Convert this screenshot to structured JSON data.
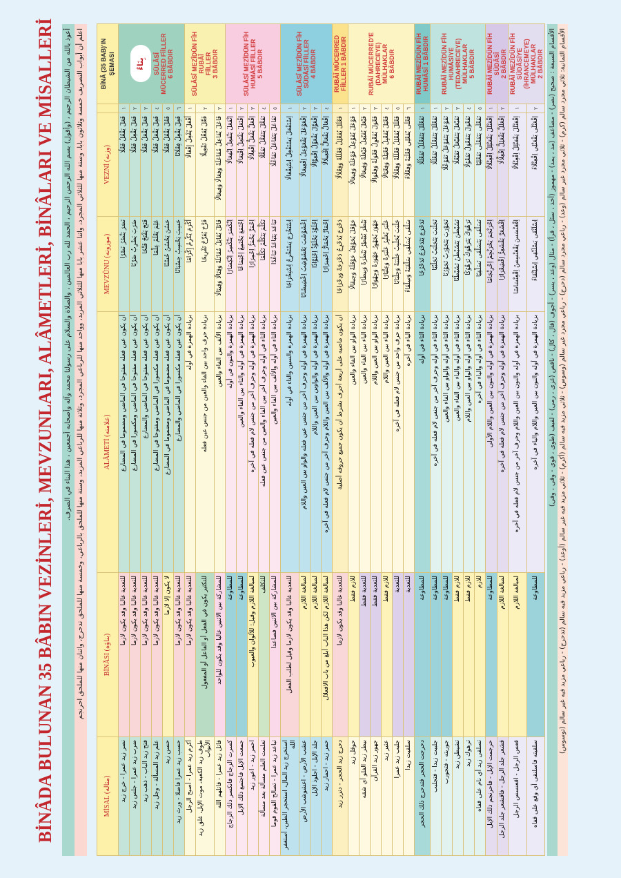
{
  "title": "BİNÂDA BULUNAN 35 BÂBIN VEZİNLERİ, MEVZUNLARI, ALÂMETLERİ, BİNÂLARI VE MİSALLERİ",
  "intro": [
    "أعوذ بالله من الشيطان الرجيم ، (وأقول) بسم الله الرحمن الرحيم ، الحمد لله رب العالمين ، والصلاة والسلام على رسولنا محمد وآله وأصحابه أجمعين ، هذا البناء في الصرف.",
    "اعلم أن أبواب التصريف خمسة وثلاثون بابا، وستة منها للثلاثي المجرد، واثنا عشر بابا منها للثلاثي المزيد، وواحد منها للرباعي المجرد، وثلاثة منها للرباعي المزيد، وستة منها للملحق بالرباعي، وخمسة منها للملحق تدحرج، واثنان منها للملحق احرنجم"
  ],
  "headers": {
    "misal": "MİSAL (مثاله)",
    "binasi": "BİNÂSI (بناؤه)",
    "alameti": "ALÂMETİ (علامته)",
    "mevzunu": "MEVZÛNU (موزونه)",
    "vezni": "VEZNİ (وزنه)",
    "schema": "BİNÂ (35 BAB)'IN ŞEMASI"
  },
  "cloud_label": "بِنَاءٌ",
  "groups": [
    {
      "label": "SÜLÂSÎ\nMÜCERRED FİİLLER\n6 BÂBDIR",
      "color": "#9fd3c0",
      "tint": "#c4e4da",
      "rows": [
        {
          "num": "١",
          "vezni": "فَعَلَ يَفْعُلُ فَعْلًا",
          "mevzunu": "نَصَرَ يَنْصُرُ نَصْرًا",
          "alameti": "أن يكون عين فعله مفتوحا في الماضي ومضموما في المضارع",
          "binasi": "للتعدية غالبا وقد يكون لازما",
          "bc": "#f9d6d8",
          "misal": "نصر زيد عمرا - خرج زيد"
        },
        {
          "num": "٢",
          "vezni": "فَعَلَ يَفْعِلُ فَعْلًا",
          "mevzunu": "ضَرَبَ يَضْرِبُ ضَرْبًا",
          "alameti": "أن يكون عين فعله مفتوحا في الماضي ومكسورا في المضارع",
          "binasi": "للتعدية غالبا وقد يكون لازما",
          "bc": "#f9d6d8",
          "misal": "ضرب زيد عمرا - جلس زيد"
        },
        {
          "num": "٣",
          "vezni": "فَعَلَ يَفْعَلُ فَعْلًا",
          "mevzunu": "فَتَحَ يَفْتَحُ فَتْحًا",
          "alameti": "أن يكون عين فعله مفتوحا في الماضي والمضارع",
          "binasi": "للتعدية غالبا وقد يكون لازما",
          "bc": "#f9d6d8",
          "misal": "فتح زيد الباب - ذهب زيد"
        },
        {
          "num": "٤",
          "vezni": "فَعِلَ يَفْعَلُ فَعْلًا",
          "mevzunu": "عَلِمَ يَعْلَمُ عِلْمًا",
          "alameti": "أن يكون عين فعله مكسورا في الماضي ومفتوحا في المضارع",
          "binasi": "للتعدية غالبا وقد يكون لازما",
          "bc": "#f9d6d8",
          "misal": "علم زيد المسألة - وجل زيد"
        },
        {
          "num": "٥",
          "vezni": "فَعُلَ يَفْعُلُ فَعْلًا",
          "mevzunu": "حَسُنَ يَحْسُنُ حُسْنًا",
          "alameti": "أن يكون عين فعله مضموما في الماضي ومضموما في المضارع",
          "binasi": "لا يكون إلا لازما",
          "bc": "#fdf3b8",
          "misal": "حسن زيد"
        },
        {
          "num": "٦",
          "vezni": "فَعِلَ يَفْعِلُ فِعْلَانًا",
          "mevzunu": "حَسِبَ يَحْسِبُ حِسْبَانًا",
          "alameti": "أن يكون عين فعله مكسورا في الماضي والمضارع",
          "binasi": "للتعدية غالبا وقد يكون لازما",
          "bc": "#f9d6d8",
          "misal": "حسب زيد عمرا فاضلا - ورث زيد"
        }
      ]
    },
    {
      "label": "SÜLÂSÎ MEZÎDÜN FÎH RUBÂÎ\nFİİLLER\n3 BÂBDIR",
      "color": "#f8f1b0",
      "tint": "#fdf9dc",
      "rows": [
        {
          "num": "١",
          "vezni": "أَفْعَلَ يُفْعِلُ إِفْعَالًا",
          "mevzunu": "أَكْرَمَ يُكْرِمُ إِكْرَامًا",
          "alameti": "بزيادة الهمزة في أوله",
          "binasi": "للتعدية غالبا وقد يكون لازما",
          "bc": "#f9d6d8",
          "misal": "أكرم زيد عمرا - أصبح الرجل"
        },
        {
          "num": "٢",
          "vezni": "فَعَّلَ يُفَعِّلُ تَفْعِيلًا",
          "mevzunu": "فَرَّحَ يُفَرِّحُ تَفْرِيحًا",
          "alameti": "بزيادة حرف واحد بين الفاء والعين من جنس عين فعله",
          "binasi": "للتكثير يكون في الفعل أو الفاعل أو المفعول",
          "bc": "#b9dcc4",
          "misal": "طوف زيد الكعبة، موت الإبل، غلق زيد الأبواب"
        },
        {
          "num": "٣",
          "vezni": "فَاعَلَ يُفَاعِلُ مُفَاعَلَةً وَفِعَالًا وَفِيعَالًا",
          "mevzunu": "قَاتَلَ يُقَاتِلُ مُقَاتَلَةً وَقِتَالًا وَقِيتَالًا",
          "alameti": "بزيادة الألف بين الفاء والعين",
          "binasi": "للمشاركة بين الاثنين غالبا وقد يكون للواحد",
          "bc": "#f9d9ea",
          "misal": "قاتل زيد عمرا - قاتلهم الله"
        }
      ]
    },
    {
      "label": "SÜLÂSÎ MEZÎDÜN FÎH\nHUMÂSÎ FİİLLER\n5 BÂBDIR",
      "color": "#f9cde0",
      "tint": "#fce6ef",
      "rows": [
        {
          "num": "١",
          "vezni": "اِنْفَعَلَ يَنْفَعِلُ اِنْفِعَالًا",
          "mevzunu": "اِنْكَسَرَ يَنْكَسِرُ اِنْكِسَارًا",
          "alameti": "بزيادة الهمزة والنون في أوله",
          "binasi": "للمطاوعة",
          "bc": "#9cd3da",
          "misal": "كسرت الزجاج فانكسر ذلك الزجاج"
        },
        {
          "num": "٢",
          "vezni": "اِفْتَعَلَ يَفْتَعِلُ اِفْتِعَالًا",
          "mevzunu": "اِجْتَمَعَ يَجْتَمِعُ اِجْتِمَاعًا",
          "alameti": "بزيادة الهمزة في أوله والتاء بين الفاء والعين",
          "binasi": "للمطاوعة",
          "bc": "#9cd3da",
          "misal": "جمعت الإبل فاجتمع ذلك الإبل"
        },
        {
          "num": "٣",
          "vezni": "اِفْعَلَّ يَفْعَلُّ اِفْعِلَالًا",
          "mevzunu": "اِحْمَرَّ يَحْمَرُّ اِحْمِرَارًا",
          "alameti": "بزيادة الهمزة في أوله وحرف آخر من جنس لام فعله في آخره",
          "binasi": "لمبالغة اللازم وقيل: للألوان والعيوب",
          "bc": "#fdf3b8",
          "misal": "احمر زيد - اعور زيد"
        },
        {
          "num": "٤",
          "vezni": "تَفَعَّلَ يَتَفَعَّلُ تَفَعُّلًا",
          "mevzunu": "تَكَلَّمَ يَتَكَلَّمُ تَكَلُّمًا",
          "alameti": "بزيادة التاء في أوله وحرف آخر بين الفاء والعين من جنس عين فعله",
          "binasi": "للتكلف",
          "bc": "#cfe6c6",
          "misal": "تعلمت العلم مسألة بعد مسألة"
        },
        {
          "num": "٥",
          "vezni": "تَفَاعَلَ يَتَفَاعَلُ تَفَاعُلًا",
          "mevzunu": "تَبَاعَدَ يَتَبَاعَدُ تَبَاعُدًا",
          "alameti": "بزيادة التاء في أوله والألف بين الفاء والعين",
          "binasi": "للمشاركة بين الاثنين فصاعدا",
          "bc": "#f9d9ea",
          "misal": "تباعد زيد عمرا - تصالح القوم قوما"
        }
      ]
    },
    {
      "label": "SÜLÂSÎ MEZÎDÜN FÎH\nSÜDÂSÎ FİİLLER\n4 BÂBDIR",
      "color": "#8ecfe0",
      "tint": "#bfe3ee",
      "rows": [
        {
          "num": "١",
          "vezni": "اِسْتَفْعَلَ يَسْتَفْعِلُ اِسْتِفْعَالًا",
          "mevzunu": "اِسْتَخْرَجَ يَسْتَخْرِجُ اِسْتِخْرَاجًا",
          "alameti": "بزيادة الهمزة والسين والتاء في أوله",
          "binasi": "للتعدية غالبا وقد يكون لازما وقيل لطلب الفعل",
          "bc": "#f9d6d8",
          "misal": "استخرج زيد المال، استحجر الطين، أستغفر الله"
        },
        {
          "num": "٢",
          "vezni": "اِفْعَوْعَلَ يَفْعَوْعِلُ اِفْعِيعَالًا",
          "mevzunu": "اِعْشَوْشَبَ يَعْشَوْشِبُ اِعْشِيشَابًا",
          "alameti": "بزيادة الهمزة في أوله وحرف آخر من جنس عين فعله والواو بين العين واللام",
          "binasi": "لمبالغة اللازم",
          "bc": "#fdf3b8",
          "misal": "عشب الأرض - اعشوشب الأرض"
        },
        {
          "num": "٣",
          "vezni": "اِفْعَوَّلَ يَفْعَوِّلُ اِفْعِوَّالًا",
          "mevzunu": "اِجْلَوَّذَ يَجْلَوِّذُ اِجْلِوَّاذًا",
          "alameti": "بزيادة الهمزة في أوله والواوين بين العين واللام",
          "binasi": "لمبالغة اللازم",
          "bc": "#fdf3b8",
          "misal": "جلذ الإبل - اجلوذ الإبل"
        },
        {
          "num": "٤",
          "vezni": "اِفْعَالَّ يَفْعَالُّ اِفْعِيلَالًا",
          "mevzunu": "اِحْمَارَّ يَحْمَارُّ اِحْمِيرَارًا",
          "alameti": "بزيادة الهمزة في أوله والألف بين العين واللام وحرف آخر من جنس لام فعله في آخره",
          "binasi": "لمبالغة اللازم لكن هذا الباب أبلغ من باب الافعلال",
          "bc": "#fdf3b8",
          "misal": "حمر زيد - احمار زيد"
        }
      ]
    },
    {
      "label": "RUBÂÎ MÜCERRED\nFİİLLER 1 BÂBDIR",
      "color": "#fbe38d",
      "tint": "#fdf0c0",
      "rows": [
        {
          "num": "١",
          "vezni": "فَعْلَلَ يُفَعْلِلُ فَعْلَلَةً وَفِعْلَالًا",
          "mevzunu": "دَحْرَجَ يُدَحْرِجُ دَحْرَجَةً وَدِحْرَاجًا",
          "alameti": "أن يكون ماضيه على أربعة أحرف بشرط أن يكون جميع حروفه أصلية",
          "binasi": "للتعدية غالبا وقد يكون لازما",
          "bc": "#f9d6d8",
          "misal": "دحرج زيد الحجر - دنزر زيد"
        }
      ]
    },
    {
      "label": "RUBÂÎ MÜCERRED'E\n(DAHRECEYE)\nMÜLHAKLAR\n6 BÂBDIR",
      "color": "#fdf4c4",
      "tint": "#fff9e2",
      "rows": [
        {
          "num": "١",
          "vezni": "فَوْعَلَ يُفَوْعِلُ فَوْعَلَةً وَفِيعَالًا",
          "mevzunu": "حَوْقَلَ يُحَوْقِلُ حَوْقَلَةً وَحِيقَالًا",
          "alameti": "بزيادة الواو بين الفاء والعين",
          "binasi": "للازم فقط",
          "bc": "#fdf3b8",
          "misal": "حوقل زيد"
        },
        {
          "num": "٢",
          "vezni": "فَيْعَلَ يُفَيْعِلُ فَيْعَلَةً وَفِيعَالًا",
          "mevzunu": "بَيْطَرَ يُبَيْطِرُ بَيْطَرَةً وَبِيطَارًا",
          "alameti": "بزيادة الياء بين الفاء والعين",
          "binasi": "للتعدية فقط",
          "bc": "#ddd0ea",
          "misal": "بيطر زيد الفلو أي شقه"
        },
        {
          "num": "٣",
          "vezni": "فَعْوَلَ يُفَعْوِلُ فَعْوَلَةً وَفِعْوَالًا",
          "mevzunu": "جَهْوَرَ يُجَهْوِرُ جَهْوَرَةً وَجِهْوَارًا",
          "alameti": "بزيادة الواو بين العين واللام",
          "binasi": "للتعدية فقط",
          "bc": "#ddd0ea",
          "misal": "جهور زيد القرآن"
        },
        {
          "num": "٤",
          "vezni": "فَعْيَلَ يُفَعْيِلُ فَعْيَلَةً وَفِعْيَالًا",
          "mevzunu": "عَثْيَرَ يُعَثْيِرُ عَثْيَرَةً وَعِثْيَارًا",
          "alameti": "بزيادة الياء بين العين واللام",
          "binasi": "للازم فقط",
          "bc": "#fdf3b8",
          "misal": "عثير زيد"
        },
        {
          "num": "٥",
          "vezni": "فَعْلَلَ يُفَعْلِلُ فَعْلَلَةً وَفِعْلَالًا",
          "mevzunu": "جَلْبَبَ يُجَلْبِبُ جَلْبَبَةً وَجِلْبَابًا",
          "alameti": "بزيادة حرف واحد من جنس لام فعله في آخره",
          "binasi": "للتعدية",
          "bc": "#ddd0ea",
          "misal": "جلبب زيد عمرا"
        },
        {
          "num": "٦",
          "vezni": "فَعْلَى يُفَعْلِي فَعْلَيَةً وَفِعْلَاءً",
          "mevzunu": "سَلْقَى يُسَلْقِي سَلْقَيَةً وَسِلْقَاءً",
          "alameti": "بزيادة الياء في آخره",
          "binasi": "للتعدية",
          "bc": "#ddd0ea",
          "misal": "سلقيت زيدا"
        }
      ]
    },
    {
      "label": "RUBÂÎ MEZÎDÜN FÎH\nHUMÂSÎ 1 BÂBDIR",
      "color": "#7fc9c9",
      "tint": "#a9dada",
      "rows": [
        {
          "num": "١",
          "vezni": "تَفَعْلَلَ يَتَفَعْلَلُ تَفَعْلُلًا",
          "mevzunu": "تَدَحْرَجَ يَتَدَحْرَجُ تَدَحْرُجًا",
          "alameti": "بزيادة التاء في أوله",
          "binasi": "للمطاوعة",
          "bc": "#9cd3da",
          "misal": "دحرجت الحجر فتدحرج ذلك الحجر"
        }
      ]
    },
    {
      "label": "RUBÂÎ MEZÎDÜN FÎH\nHUMÂSİYE (TEDAHRECEYE)\nMÜLHAKLAR\n5 BÂBDIR",
      "color": "#bfe4df",
      "tint": "#e2f2ef",
      "rows": [
        {
          "num": "١",
          "vezni": "تَفَعْلَلَ يَتَفَعْلَلُ تَفَعْلُلًا",
          "mevzunu": "تَجَلْبَبَ يَتَجَلْبَبُ تَجَلْبُبًا",
          "alameti": "بزيادة التاء في أوله وحرف آخر من جنس لام فعله في آخره",
          "binasi": "للمطاوعة",
          "bc": "#9cd3da",
          "misal": "جلببت زيدا - فتجلبب"
        },
        {
          "num": "٢",
          "vezni": "تَفَوْعَلَ يَتَفَوْعَلُ تَفَوْعُلًا",
          "mevzunu": "تَجَوْرَبَ يَتَجَوْرَبُ تَجَوْرُبًا",
          "alameti": "بزيادة التاء في أوله والواو بين الفاء والعين",
          "binasi": "للمطاوعة",
          "bc": "#9cd3da",
          "misal": "جوربته - فتجورب"
        },
        {
          "num": "٣",
          "vezni": "تَفَيْعَلَ يَتَفَيْعَلُ تَفَيْعُلًا",
          "mevzunu": "تَشَيْطَنَ يَتَشَيْطَنُ تَشَيْطُنًا",
          "alameti": "بزيادة التاء في أوله والياء بين الفاء والعين",
          "binasi": "للازم فقط",
          "bc": "#fdf3b8",
          "misal": "تشيطن زيد"
        },
        {
          "num": "٤",
          "vezni": "تَفَعْوَلَ يَتَفَعْوَلُ تَفَعْوُلًا",
          "mevzunu": "تَرَهْوَكَ يَتَرَهْوَكُ تَرَهْوُكًا",
          "alameti": "بزيادة التاء في أوله والواو بين العين واللام",
          "binasi": "للازم فقط",
          "bc": "#fdf3b8",
          "misal": "ترهوك زيد"
        },
        {
          "num": "٥",
          "vezni": "تَفَعْلَى يَتَفَعْلَى تَفَعْلِيًا",
          "mevzunu": "تَسَلْقَى يَتَسَلْقَى تَسَلْقِيًا",
          "alameti": "بزيادة التاء في أوله والياء في آخره",
          "binasi": "للازم",
          "bc": "#fdf3b8",
          "misal": "تسلقى زيد أي نام على قفاه"
        }
      ]
    },
    {
      "label": "RUBÂÎ MEZÎDÜN FÎH SÜDÂSÎ\n2 BÂBDIR",
      "color": "#d6c8e6",
      "tint": "#e6dcf0",
      "rows": [
        {
          "num": "١",
          "vezni": "اِفْعَنْلَلَ يَفْعَنْلِلُ اِفْعِنْلَالًا",
          "mevzunu": "اِحْرَنْجَمَ يَحْرَنْجِمُ اِحْرِنْجَامًا",
          "alameti": "بزيادة الهمزة في أوله والنون بين العين واللام الأولى",
          "binasi": "للمطاوعة",
          "bc": "#9cd3da",
          "misal": "حرجمت الإبل - فاحرنجم ذلك الإبل"
        },
        {
          "num": "٢",
          "vezni": "اِفْعَلَلَّ يَفْعَلِلُّ اِفْعِلَّالًا",
          "mevzunu": "اِقْشَعَرَّ يَقْشَعِرُّ اِقْشِعْرَارًا",
          "alameti": "بزيادة الهمزة في أوله وحرف آخر من جنس لام فعله في آخره",
          "binasi": "لمبالغة اللازم",
          "bc": "#fdf3b8",
          "misal": "قشعر جلد الرجل - فاقشعر جلد الرجل"
        }
      ]
    },
    {
      "label": "RUBÂÎ MEZÎDÜN FÎH\nSÜDÂSİYE (İHRANCEMEYE)\nMÜLHAKLAR\n2 BÂBDIR",
      "color": "#e2def0",
      "tint": "#eceaf6",
      "rows": [
        {
          "num": "١",
          "vezni": "اِفْعَنْلَلَ يَفْعَنْلِلُ اِفْعِنْلَالًا",
          "mevzunu": "اِقْعَنْسَسَ يَقْعَنْسِسُ اِقْعِنْسَاسًا",
          "alameti": "بزيادة الهمزة في أوله والنون بين العين واللام وحرف آخر من جنس لام فعله في آخره",
          "binasi": "لمبالغة اللازم",
          "bc": "#fdf3b8",
          "misal": "قعس الرجل - اقعنسس الرجل"
        },
        {
          "num": "٢",
          "vezni": "اِفْعَنْلَى يَفْعَنْلِي اِفْعِنْلَاءً",
          "mevzunu": "اِسْلَنْقَى يَسْلَنْقِي اِسْلِنْقَاءً",
          "alameti": "بزيادة الهمزة في أوله والنون بين العين واللام والياء في آخره",
          "binasi": "للمطاوعة",
          "bc": "#9cd3da",
          "misal": "سلقيته فاسلنقى أي وقع على قفاه"
        }
      ]
    }
  ],
  "footer": [
    "الأقسام السبعة : صحيح (نصر) - مضاعف (مد ، يمد) - مهموز (أخذ ، سئل ، قرأ) - مثال (وعد ، يسر) - أجوف (قال ، كال) - ناقص (غزى ، رمى) - لفيف (طوى ، قوي - وقى ، وفى)",
    "الأقسام الثمانية: ثلاثي مجرد سالم (كرم) - ثلاثي مجرد غير سالم (وعد) - رباعي مجرد سالم (دحرج) - رباعي مجرد غير سالم (وسوس) - ثلاثي مزيد فيه سالم (أكرم) - ثلاثي مزيد فيه غير سالم (أوعد) - رباعي مزيد فيه سالم (تدحرج) - رباعي مزيد فيه غير سالم (توسوس)"
  ]
}
